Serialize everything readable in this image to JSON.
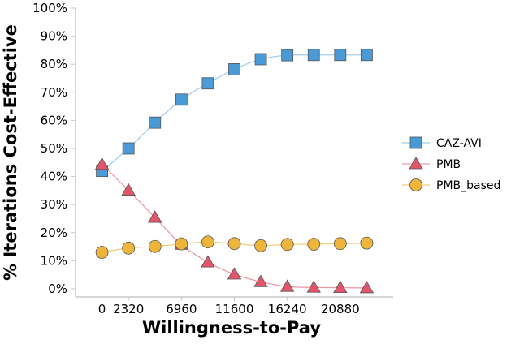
{
  "chart_data": {
    "type": "line",
    "xlabel": "Willingness-to-Pay",
    "ylabel": "% Iterations Cost-Effective",
    "x_tick_labels": [
      "0",
      "2320",
      "6960",
      "11600",
      "16240",
      "20880"
    ],
    "x_ticks": [
      0,
      2320,
      6960,
      11600,
      16240,
      20880
    ],
    "xlim": [
      -2320,
      25520
    ],
    "y_tick_labels": [
      "0%",
      "10%",
      "20%",
      "30%",
      "40%",
      "50%",
      "60%",
      "70%",
      "80%",
      "90%",
      "100%"
    ],
    "y_ticks": [
      0,
      10,
      20,
      30,
      40,
      50,
      60,
      70,
      80,
      90,
      100
    ],
    "ylim": [
      0,
      100
    ],
    "x": [
      0,
      2320,
      4640,
      6960,
      9280,
      11600,
      13920,
      16240,
      18560,
      20880,
      23200
    ],
    "series": [
      {
        "name": "CAZ-AVI",
        "marker": "square",
        "color": "#4a9ad8",
        "line_color": "#a8cdee",
        "values": [
          42.0,
          50.0,
          59.2,
          67.4,
          73.2,
          78.2,
          81.8,
          83.2,
          83.3,
          83.3,
          83.3
        ]
      },
      {
        "name": "PMB",
        "marker": "triangle",
        "color": "#e2556b",
        "line_color": "#ec9aa7",
        "values": [
          44.3,
          35.1,
          25.4,
          15.8,
          9.5,
          5.2,
          2.5,
          0.8,
          0.5,
          0.4,
          0.3
        ]
      },
      {
        "name": "PMB_based",
        "marker": "circle",
        "color": "#efb43a",
        "line_color": "#f2cf83",
        "values": [
          13.0,
          14.5,
          15.1,
          16.0,
          16.7,
          16.1,
          15.4,
          15.8,
          15.9,
          16.1,
          16.3
        ]
      }
    ],
    "legend_position": "right",
    "grid": false
  }
}
